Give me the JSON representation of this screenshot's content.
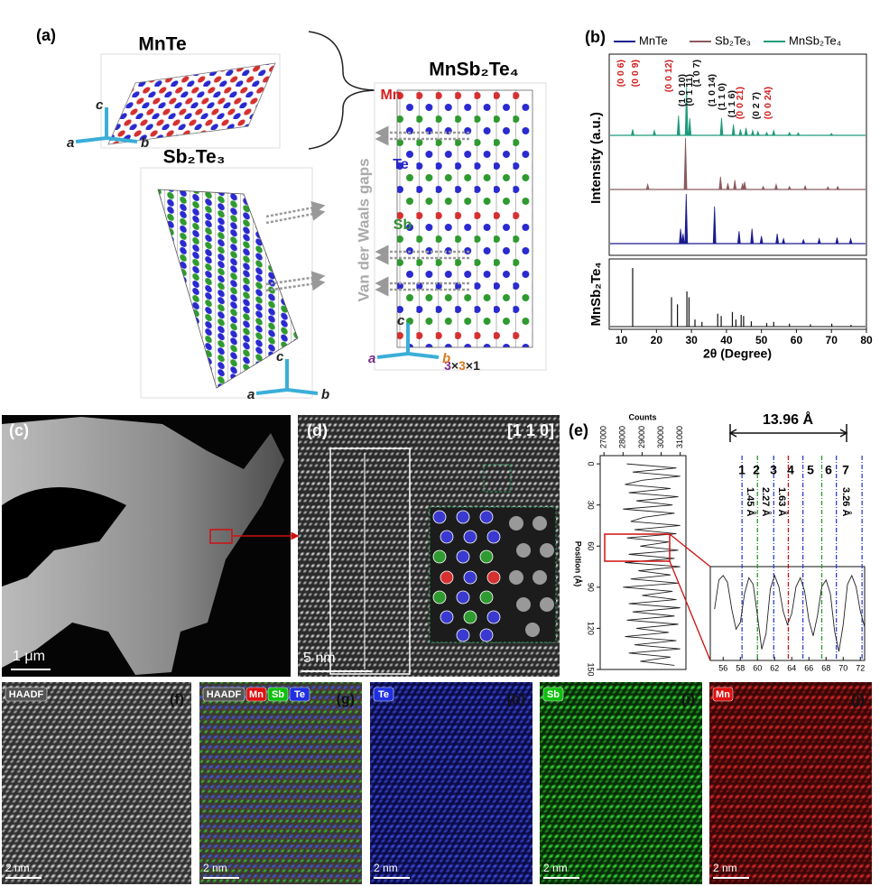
{
  "panel_a": {
    "label": "(a)",
    "mnte": "MnTe",
    "sb2te3": "Sb₂Te₃",
    "mnsb2te4": "MnSb₂Te₄",
    "axes1": [
      "a",
      "b",
      "c"
    ],
    "axes2": [
      "a",
      "b",
      "c"
    ],
    "axes3": [
      "a",
      "b",
      "c"
    ],
    "elements": [
      {
        "text": "Mn",
        "color": "#d42020"
      },
      {
        "text": "Te",
        "color": "#2626c8"
      },
      {
        "text": "Sb",
        "color": "#2f8f2f"
      }
    ],
    "vdw": "Van der Waals gaps",
    "supercell": [
      {
        "text": "3",
        "color": "#7a2a8a"
      },
      {
        "text": "×",
        "color": "#222222"
      },
      {
        "text": "3",
        "color": "#e07a20"
      },
      {
        "text": "×1",
        "color": "#222222"
      }
    ]
  },
  "panel_b": {
    "label": "(b)",
    "ylabel": "Intensity (a.u.)",
    "ref_label": "MnSb₂Te₄",
    "xlabel": "2θ (Degree)",
    "xlim": [
      6.5,
      80
    ],
    "xticks": [
      10,
      20,
      30,
      40,
      50,
      60,
      70,
      80
    ],
    "series": [
      {
        "name": "MnTe",
        "color": "#1c1c8f",
        "x": [
          26.9,
          27.6,
          28.5,
          36.6,
          43.6,
          47.3,
          50.0,
          54.5,
          56.3,
          62.0,
          66.5,
          71.6,
          75.5
        ],
        "values": [
          30,
          20,
          100,
          75,
          25,
          30,
          15,
          20,
          10,
          8,
          10,
          12,
          10
        ]
      },
      {
        "name": "Sb₂Te₃",
        "color": "#8a5a5e",
        "x": [
          17.5,
          28.3,
          38.3,
          40.4,
          42.4,
          44.6,
          45.2,
          50.5,
          54.2,
          58.0,
          62.5,
          69.0,
          71.8
        ],
        "values": [
          10,
          100,
          25,
          12,
          18,
          12,
          15,
          6,
          10,
          6,
          7,
          5,
          6
        ]
      },
      {
        "name": "MnSb₂Te₄",
        "color": "#1f9a7a",
        "x": [
          13.2,
          19.4,
          26.3,
          28.6,
          29.5,
          38.6,
          42.0,
          44.0,
          45.6,
          47.5,
          49.0,
          51.5,
          53.5,
          58.0,
          60.5,
          70.0
        ],
        "values": [
          12,
          10,
          40,
          100,
          35,
          35,
          22,
          12,
          15,
          10,
          8,
          6,
          10,
          6,
          5,
          4
        ]
      }
    ],
    "reference": {
      "color": "#111111",
      "x": [
        13.2,
        24.3,
        26.0,
        28.7,
        29.3,
        31.0,
        33.0,
        37.5,
        38.5,
        41.7,
        42.7,
        44.2,
        44.9,
        47.1,
        51.5,
        53.5,
        58,
        64,
        70.1,
        75.6
      ],
      "values": [
        100,
        50,
        38,
        60,
        50,
        12,
        8,
        22,
        18,
        25,
        12,
        20,
        18,
        9,
        6,
        8,
        5,
        4,
        5,
        3
      ]
    },
    "annotations": [
      {
        "text": "(0 0 6)",
        "color": "#d42020"
      },
      {
        "text": "(0 0 9)",
        "color": "#d42020"
      },
      {
        "text": "(0 0 12)",
        "color": "#d42020"
      },
      {
        "text": "(1 0 10)",
        "color": "#111111"
      },
      {
        "text": "(0 1 11)",
        "color": "#111111"
      },
      {
        "text": "(1 0 7)",
        "color": "#111111"
      },
      {
        "text": "(1 0 14)",
        "color": "#111111"
      },
      {
        "text": "(1 1 0)",
        "color": "#111111"
      },
      {
        "text": "(1 1 6)",
        "color": "#111111"
      },
      {
        "text": "(0 0 21)",
        "color": "#d42020"
      },
      {
        "text": "(0 2 7)",
        "color": "#111111"
      },
      {
        "text": "(0 0 24)",
        "color": "#d42020"
      }
    ]
  },
  "panel_c": {
    "label": "(c)",
    "scale": "1 μm"
  },
  "panel_d": {
    "label": "(d)",
    "zone": "[1 1 0]",
    "scale": "5 nm"
  },
  "panel_e": {
    "label": "(e)",
    "counts_label": "Counts",
    "position_label": "Position (Å)",
    "xlim": [
      26800,
      31300
    ],
    "xticks": [
      27000,
      28000,
      29000,
      30000,
      31000
    ],
    "ylim": [
      -6,
      150
    ],
    "yticks": [
      0,
      30,
      60,
      90,
      120,
      150
    ],
    "profile": {
      "position": [
        0,
        3,
        6,
        9,
        12,
        15,
        18,
        21,
        24,
        27,
        30,
        33,
        36,
        39,
        42,
        45,
        48,
        51,
        54,
        57,
        60,
        63,
        66,
        69,
        72,
        75,
        78,
        81,
        84,
        87,
        90,
        93,
        96,
        99,
        102,
        105,
        108,
        111,
        114,
        117,
        120,
        123,
        126,
        129,
        132,
        135,
        138,
        141,
        144,
        147
      ],
      "counts": [
        28200,
        30800,
        28500,
        31000,
        29000,
        28100,
        30500,
        28300,
        30900,
        28700,
        30600,
        28000,
        30700,
        29100,
        28400,
        31000,
        28600,
        30800,
        28200,
        30400,
        28900,
        30900,
        28300,
        30700,
        28100,
        31000,
        28800,
        30500,
        28400,
        30900,
        28000,
        30600,
        29000,
        30800,
        28300,
        31000,
        28500,
        30700,
        28200,
        30900,
        28700,
        30400,
        28100,
        30800,
        28600,
        31000,
        28300,
        30500,
        28900,
        30700
      ]
    },
    "period": "13.96 Å",
    "layers": [
      "1",
      "2",
      "3",
      "4",
      "5",
      "6",
      "7"
    ],
    "distances": [
      "1.45 Å",
      "2.27 Å",
      "1.63 Å",
      "3.26 Å"
    ],
    "zoom": {
      "xlim": [
        54.5,
        72.5
      ],
      "xticks": [
        56,
        58,
        60,
        62,
        64,
        66,
        68,
        70,
        72
      ],
      "ylim": [
        27200,
        31400
      ],
      "x": [
        55,
        55.5,
        56,
        56.5,
        57,
        57.5,
        58,
        58.5,
        59,
        59.5,
        60,
        60.5,
        61,
        61.5,
        62,
        62.5,
        63,
        63.5,
        64,
        64.5,
        65,
        65.5,
        66,
        66.5,
        67,
        67.5,
        68,
        68.5,
        69,
        69.5,
        70,
        70.5,
        71,
        71.5,
        72,
        72.5
      ],
      "counts": [
        29500,
        30800,
        31000,
        30700,
        29500,
        28600,
        28900,
        30200,
        30900,
        30600,
        29200,
        27700,
        28400,
        30400,
        31000,
        30500,
        29400,
        28800,
        29300,
        30500,
        30900,
        30300,
        29000,
        28300,
        29200,
        30500,
        30800,
        30200,
        28500,
        27600,
        28800,
        30600,
        31000,
        30500,
        29400,
        28700
      ]
    }
  },
  "maps": [
    {
      "label": "(f)",
      "tags": [
        {
          "text": "HAADF",
          "color": "#ffffff"
        }
      ],
      "scale": "2 nm"
    },
    {
      "label": "(g)",
      "tags": [
        {
          "text": "HAADF",
          "color": "#ffffff"
        },
        {
          "text": "Mn",
          "color": "#e01010"
        },
        {
          "text": "Sb",
          "color": "#10c010"
        },
        {
          "text": "Te",
          "color": "#2030e0"
        }
      ],
      "scale": "2 nm"
    },
    {
      "label": "(h)",
      "tags": [
        {
          "text": "Te",
          "color": "#2030e0"
        }
      ],
      "scale": "2 nm"
    },
    {
      "label": "(i)",
      "tags": [
        {
          "text": "Sb",
          "color": "#10c010"
        }
      ],
      "scale": "2 nm"
    },
    {
      "label": "(j)",
      "tags": [
        {
          "text": "Mn",
          "color": "#e01010"
        }
      ],
      "scale": "2 nm"
    }
  ]
}
